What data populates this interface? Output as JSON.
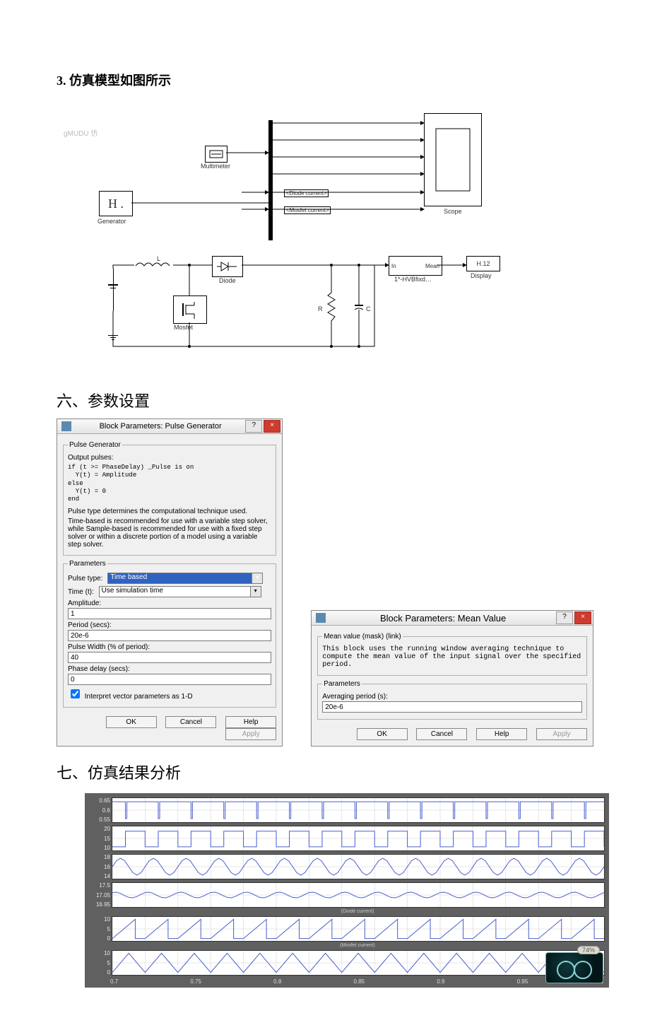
{
  "headings": {
    "model": "3. 仿真模型如图所示",
    "params": "六、参数设置",
    "results": "七、仿真结果分析"
  },
  "simulink": {
    "watermark": "gMUDU 仿",
    "blocks": {
      "generator": {
        "label": "Generator",
        "glyph": "H ."
      },
      "multimeter": {
        "label": "Multimeter"
      },
      "diode": {
        "label": "Diode"
      },
      "mosfet": {
        "label": "Mosfet"
      },
      "mean": {
        "label": "1*-HVBfixd…",
        "in": "In",
        "out": "Mean"
      },
      "display": {
        "label": "Display",
        "value": "H.12"
      },
      "scope": {
        "label": "Scope"
      },
      "L": {
        "label": "L"
      },
      "R": {
        "label": "R"
      },
      "C": {
        "label": "C"
      }
    },
    "signal_labels": {
      "diode_current": "<Diode current>",
      "mosfet_current": "<Mosfet current>"
    },
    "colors": {
      "wire": "#000000",
      "block_border": "#000000",
      "bg": "#ffffff"
    }
  },
  "pulse_dialog": {
    "title": "Block Parameters: Pulse Generator",
    "group_top_title": "Pulse Generator",
    "output_label": "Output pulses:",
    "code": "if (t >= PhaseDelay) _Pulse is on\n  Y(t) = Amplitude\nelse\n  Y(t) = 0\nend",
    "desc1": "Pulse type determines the computational technique used.",
    "desc2": "Time-based is recommended for use with a variable step solver, while Sample-based is recommended for use with a fixed step solver or within a discrete portion of a model using a variable step solver.",
    "params_legend": "Parameters",
    "fields": {
      "pulse_type": {
        "label": "Pulse type:",
        "value": "Time based"
      },
      "time": {
        "label": "Time (t):",
        "value": "Use simulation time"
      },
      "amplitude": {
        "label": "Amplitude:",
        "value": "1"
      },
      "period": {
        "label": "Period (secs):",
        "value": "20e-6"
      },
      "pulse_width": {
        "label": "Pulse Width (% of period):",
        "value": "40"
      },
      "phase_delay": {
        "label": "Phase delay (secs):",
        "value": "0"
      }
    },
    "checkbox_label": "Interpret vector parameters as 1-D",
    "checkbox_checked": true,
    "buttons": {
      "ok": "OK",
      "cancel": "Cancel",
      "help": "Help",
      "apply": "Apply"
    }
  },
  "mean_dialog": {
    "title": "Block Parameters: Mean Value",
    "group_top_title": "Mean value (mask) (link)",
    "desc": "This block uses the running window averaging technique to compute the mean value of the input signal over the specified period.",
    "params_legend": "Parameters",
    "fields": {
      "avg_period": {
        "label": "Averaging period (s):",
        "value": "20e-6"
      }
    },
    "buttons": {
      "ok": "OK",
      "cancel": "Cancel",
      "help": "Help",
      "apply": "Apply"
    }
  },
  "scope": {
    "bg_color": "#606060",
    "plot_bg": "#ffffff",
    "trace_color": "#4a5fd0",
    "grid_color": "#cfcfcf",
    "time_ticks": [
      "0.7",
      "0.75",
      "0.8",
      "0.85",
      "0.9",
      "0.95",
      "1"
    ],
    "time_range": [
      0.7,
      1.0
    ],
    "cycles": 15,
    "panels": [
      {
        "yticks": [
          "0.65",
          "0.6",
          "0.55"
        ],
        "shape": "square_high",
        "caption": ""
      },
      {
        "yticks": [
          "20",
          "15",
          "10"
        ],
        "shape": "square_step",
        "caption": ""
      },
      {
        "yticks": [
          "18",
          "16",
          "14"
        ],
        "shape": "ripple",
        "caption": ""
      },
      {
        "yticks": [
          "17.5",
          "17.05",
          "16.95"
        ],
        "shape": "small_ripple",
        "caption": "(Diode current)"
      },
      {
        "yticks": [
          "10",
          "5",
          "0"
        ],
        "shape": "saw_right",
        "caption": "(Mosfet current)"
      },
      {
        "yticks": [
          "10",
          "5",
          "0"
        ],
        "shape": "triangle",
        "caption": ""
      }
    ],
    "thumb_badge": "74%"
  }
}
